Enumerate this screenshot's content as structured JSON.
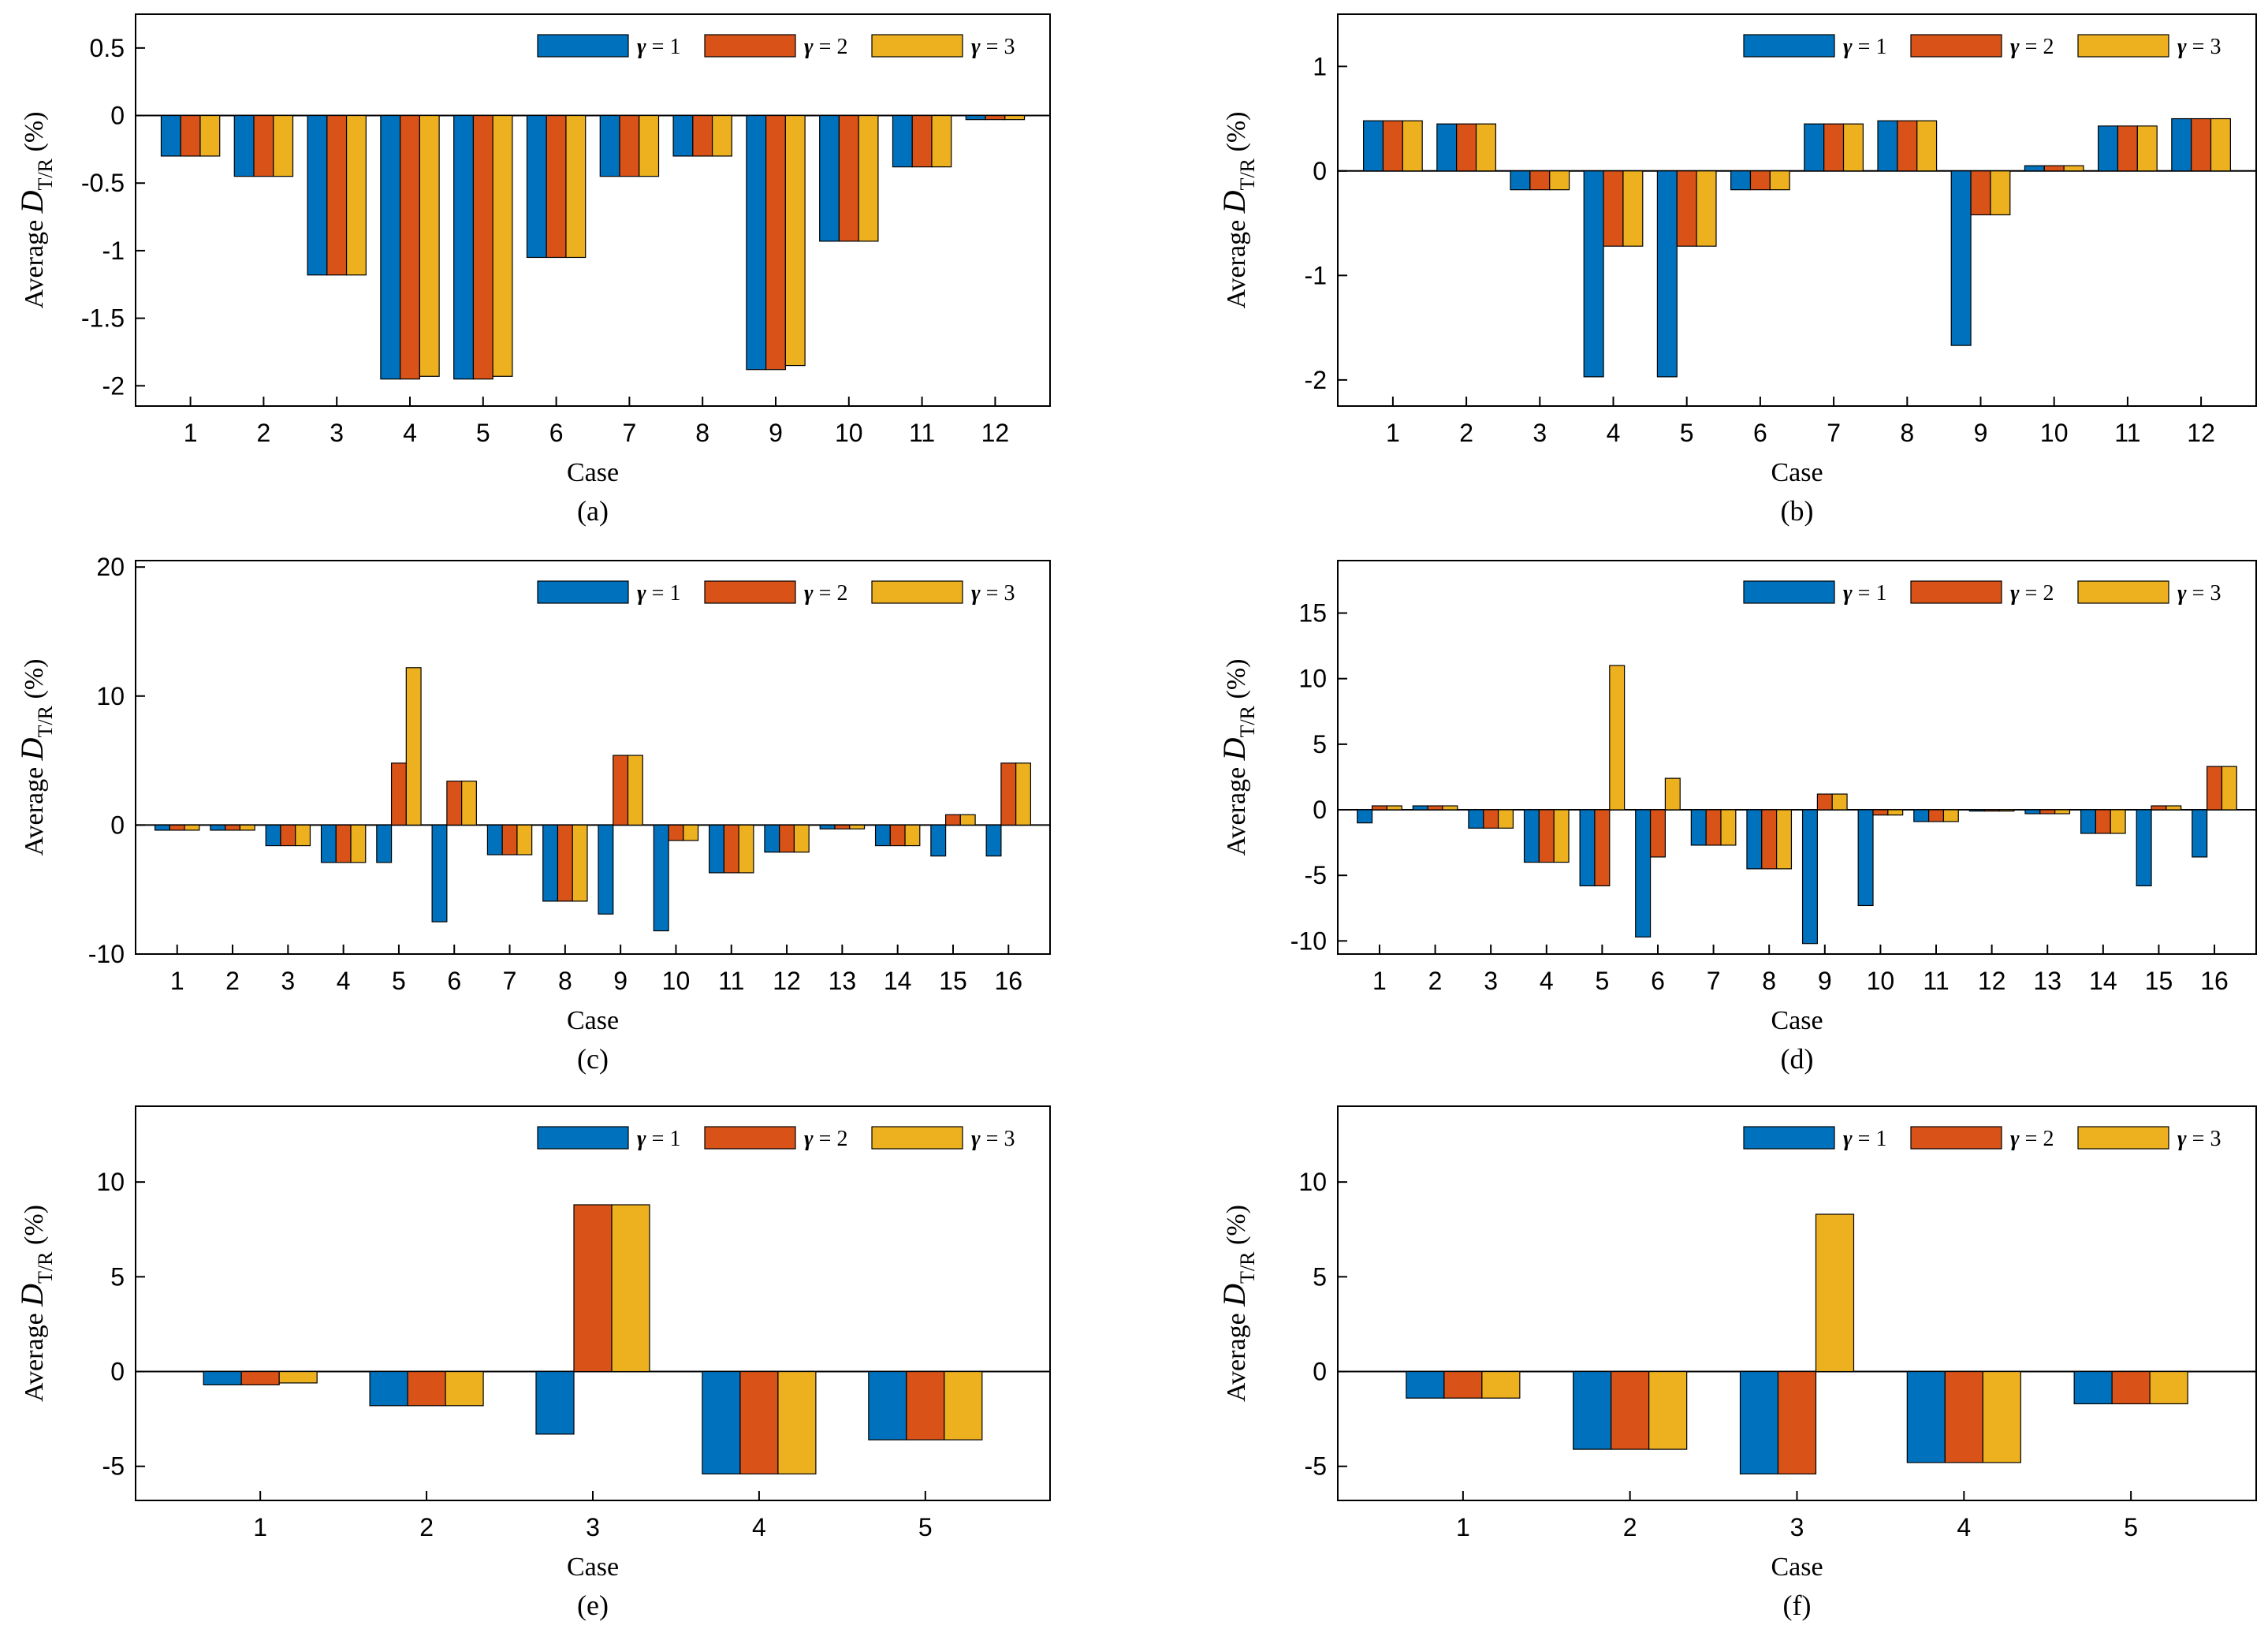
{
  "figure": {
    "legend_symbol": "γ",
    "xlabel": "Case",
    "ylabel_prefix": "Average ",
    "ylabel_var": "D",
    "ylabel_sub": "T/R",
    "ylabel_suffix": " (%)",
    "colors": [
      "#0072BD",
      "#D95319",
      "#EDB120"
    ]
  },
  "chart_data": [
    {
      "panel": "(a)",
      "type": "bar",
      "categories": [
        "1",
        "2",
        "3",
        "4",
        "5",
        "6",
        "7",
        "8",
        "9",
        "10",
        "11",
        "12"
      ],
      "ylim": [
        -2.15,
        0.75
      ],
      "yticks": [
        -2,
        -1.5,
        -1,
        -0.5,
        0,
        0.5
      ],
      "legend": "top-right",
      "series": [
        {
          "name": "γ = 1",
          "values": [
            -0.3,
            -0.45,
            -1.18,
            -1.95,
            -1.95,
            -1.05,
            -0.45,
            -0.3,
            -1.88,
            -0.93,
            -0.38,
            -0.03
          ]
        },
        {
          "name": "γ = 2",
          "values": [
            -0.3,
            -0.45,
            -1.18,
            -1.95,
            -1.95,
            -1.05,
            -0.45,
            -0.3,
            -1.88,
            -0.93,
            -0.38,
            -0.03
          ]
        },
        {
          "name": "γ = 3",
          "values": [
            -0.3,
            -0.45,
            -1.18,
            -1.93,
            -1.93,
            -1.05,
            -0.45,
            -0.3,
            -1.85,
            -0.93,
            -0.38,
            -0.03
          ]
        }
      ]
    },
    {
      "panel": "(b)",
      "type": "bar",
      "categories": [
        "1",
        "2",
        "3",
        "4",
        "5",
        "6",
        "7",
        "8",
        "9",
        "10",
        "11",
        "12"
      ],
      "ylim": [
        -2.25,
        1.5
      ],
      "yticks": [
        -2,
        -1,
        0,
        1
      ],
      "legend": "top-right",
      "series": [
        {
          "name": "γ = 1",
          "values": [
            0.48,
            0.45,
            -0.18,
            -1.97,
            -1.97,
            -0.18,
            0.45,
            0.48,
            -1.67,
            0.05,
            0.43,
            0.5
          ]
        },
        {
          "name": "γ = 2",
          "values": [
            0.48,
            0.45,
            -0.18,
            -0.72,
            -0.72,
            -0.18,
            0.45,
            0.48,
            -0.42,
            0.05,
            0.43,
            0.5
          ]
        },
        {
          "name": "γ = 3",
          "values": [
            0.48,
            0.45,
            -0.18,
            -0.72,
            -0.72,
            -0.18,
            0.45,
            0.48,
            -0.42,
            0.05,
            0.43,
            0.5
          ]
        }
      ]
    },
    {
      "panel": "(c)",
      "type": "bar",
      "categories": [
        "1",
        "2",
        "3",
        "4",
        "5",
        "6",
        "7",
        "8",
        "9",
        "10",
        "11",
        "12",
        "13",
        "14",
        "15",
        "16"
      ],
      "ylim": [
        -10,
        20.5
      ],
      "yticks": [
        -10,
        0,
        10,
        20
      ],
      "legend": "top-right",
      "series": [
        {
          "name": "γ = 1",
          "values": [
            -0.4,
            -0.4,
            -1.6,
            -2.9,
            -2.9,
            -7.5,
            -2.3,
            -5.9,
            -6.9,
            -8.2,
            -3.7,
            -2.1,
            -0.3,
            -1.6,
            -2.4,
            -2.4
          ]
        },
        {
          "name": "γ = 2",
          "values": [
            -0.4,
            -0.4,
            -1.6,
            -2.9,
            4.8,
            3.4,
            -2.3,
            -5.9,
            5.4,
            -1.2,
            -3.7,
            -2.1,
            -0.3,
            -1.6,
            0.8,
            4.8
          ]
        },
        {
          "name": "γ = 3",
          "values": [
            -0.4,
            -0.4,
            -1.6,
            -2.9,
            12.2,
            3.4,
            -2.3,
            -5.9,
            5.4,
            -1.2,
            -3.7,
            -2.1,
            -0.3,
            -1.6,
            0.8,
            4.8
          ]
        }
      ]
    },
    {
      "panel": "(d)",
      "type": "bar",
      "categories": [
        "1",
        "2",
        "3",
        "4",
        "5",
        "6",
        "7",
        "8",
        "9",
        "10",
        "11",
        "12",
        "13",
        "14",
        "15",
        "16"
      ],
      "ylim": [
        -11,
        19
      ],
      "yticks": [
        -10,
        -5,
        0,
        5,
        10,
        15
      ],
      "legend": "top-right",
      "series": [
        {
          "name": "γ = 1",
          "values": [
            -1.0,
            0.3,
            -1.4,
            -4.0,
            -5.8,
            -9.7,
            -2.7,
            -4.5,
            -10.2,
            -7.3,
            -0.9,
            -0.1,
            -0.3,
            -1.8,
            -5.8,
            -3.6
          ]
        },
        {
          "name": "γ = 2",
          "values": [
            0.3,
            0.3,
            -1.4,
            -4.0,
            -5.8,
            -3.6,
            -2.7,
            -4.5,
            1.2,
            -0.4,
            -0.9,
            -0.1,
            -0.3,
            -1.8,
            0.3,
            3.3
          ]
        },
        {
          "name": "γ = 3",
          "values": [
            0.3,
            0.3,
            -1.4,
            -4.0,
            11.0,
            2.4,
            -2.7,
            -4.5,
            1.2,
            -0.4,
            -0.9,
            -0.1,
            -0.3,
            -1.8,
            0.3,
            3.3
          ]
        }
      ]
    },
    {
      "panel": "(e)",
      "type": "bar",
      "categories": [
        "1",
        "2",
        "3",
        "4",
        "5"
      ],
      "ylim": [
        -6.8,
        14
      ],
      "yticks": [
        -5,
        0,
        5,
        10
      ],
      "legend": "top-right",
      "series": [
        {
          "name": "γ = 1",
          "values": [
            -0.7,
            -1.8,
            -3.3,
            -5.4,
            -3.6
          ]
        },
        {
          "name": "γ = 2",
          "values": [
            -0.7,
            -1.8,
            8.8,
            -5.4,
            -3.6
          ]
        },
        {
          "name": "γ = 3",
          "values": [
            -0.6,
            -1.8,
            8.8,
            -5.4,
            -3.6
          ]
        }
      ]
    },
    {
      "panel": "(f)",
      "type": "bar",
      "categories": [
        "1",
        "2",
        "3",
        "4",
        "5"
      ],
      "ylim": [
        -6.8,
        14
      ],
      "yticks": [
        -5,
        0,
        5,
        10
      ],
      "legend": "top-right",
      "series": [
        {
          "name": "γ = 1",
          "values": [
            -1.4,
            -4.1,
            -5.4,
            -4.8,
            -1.7
          ]
        },
        {
          "name": "γ = 2",
          "values": [
            -1.4,
            -4.1,
            -5.4,
            -4.8,
            -1.7
          ]
        },
        {
          "name": "γ = 3",
          "values": [
            -1.4,
            -4.1,
            8.3,
            -4.8,
            -1.7
          ]
        }
      ]
    }
  ]
}
